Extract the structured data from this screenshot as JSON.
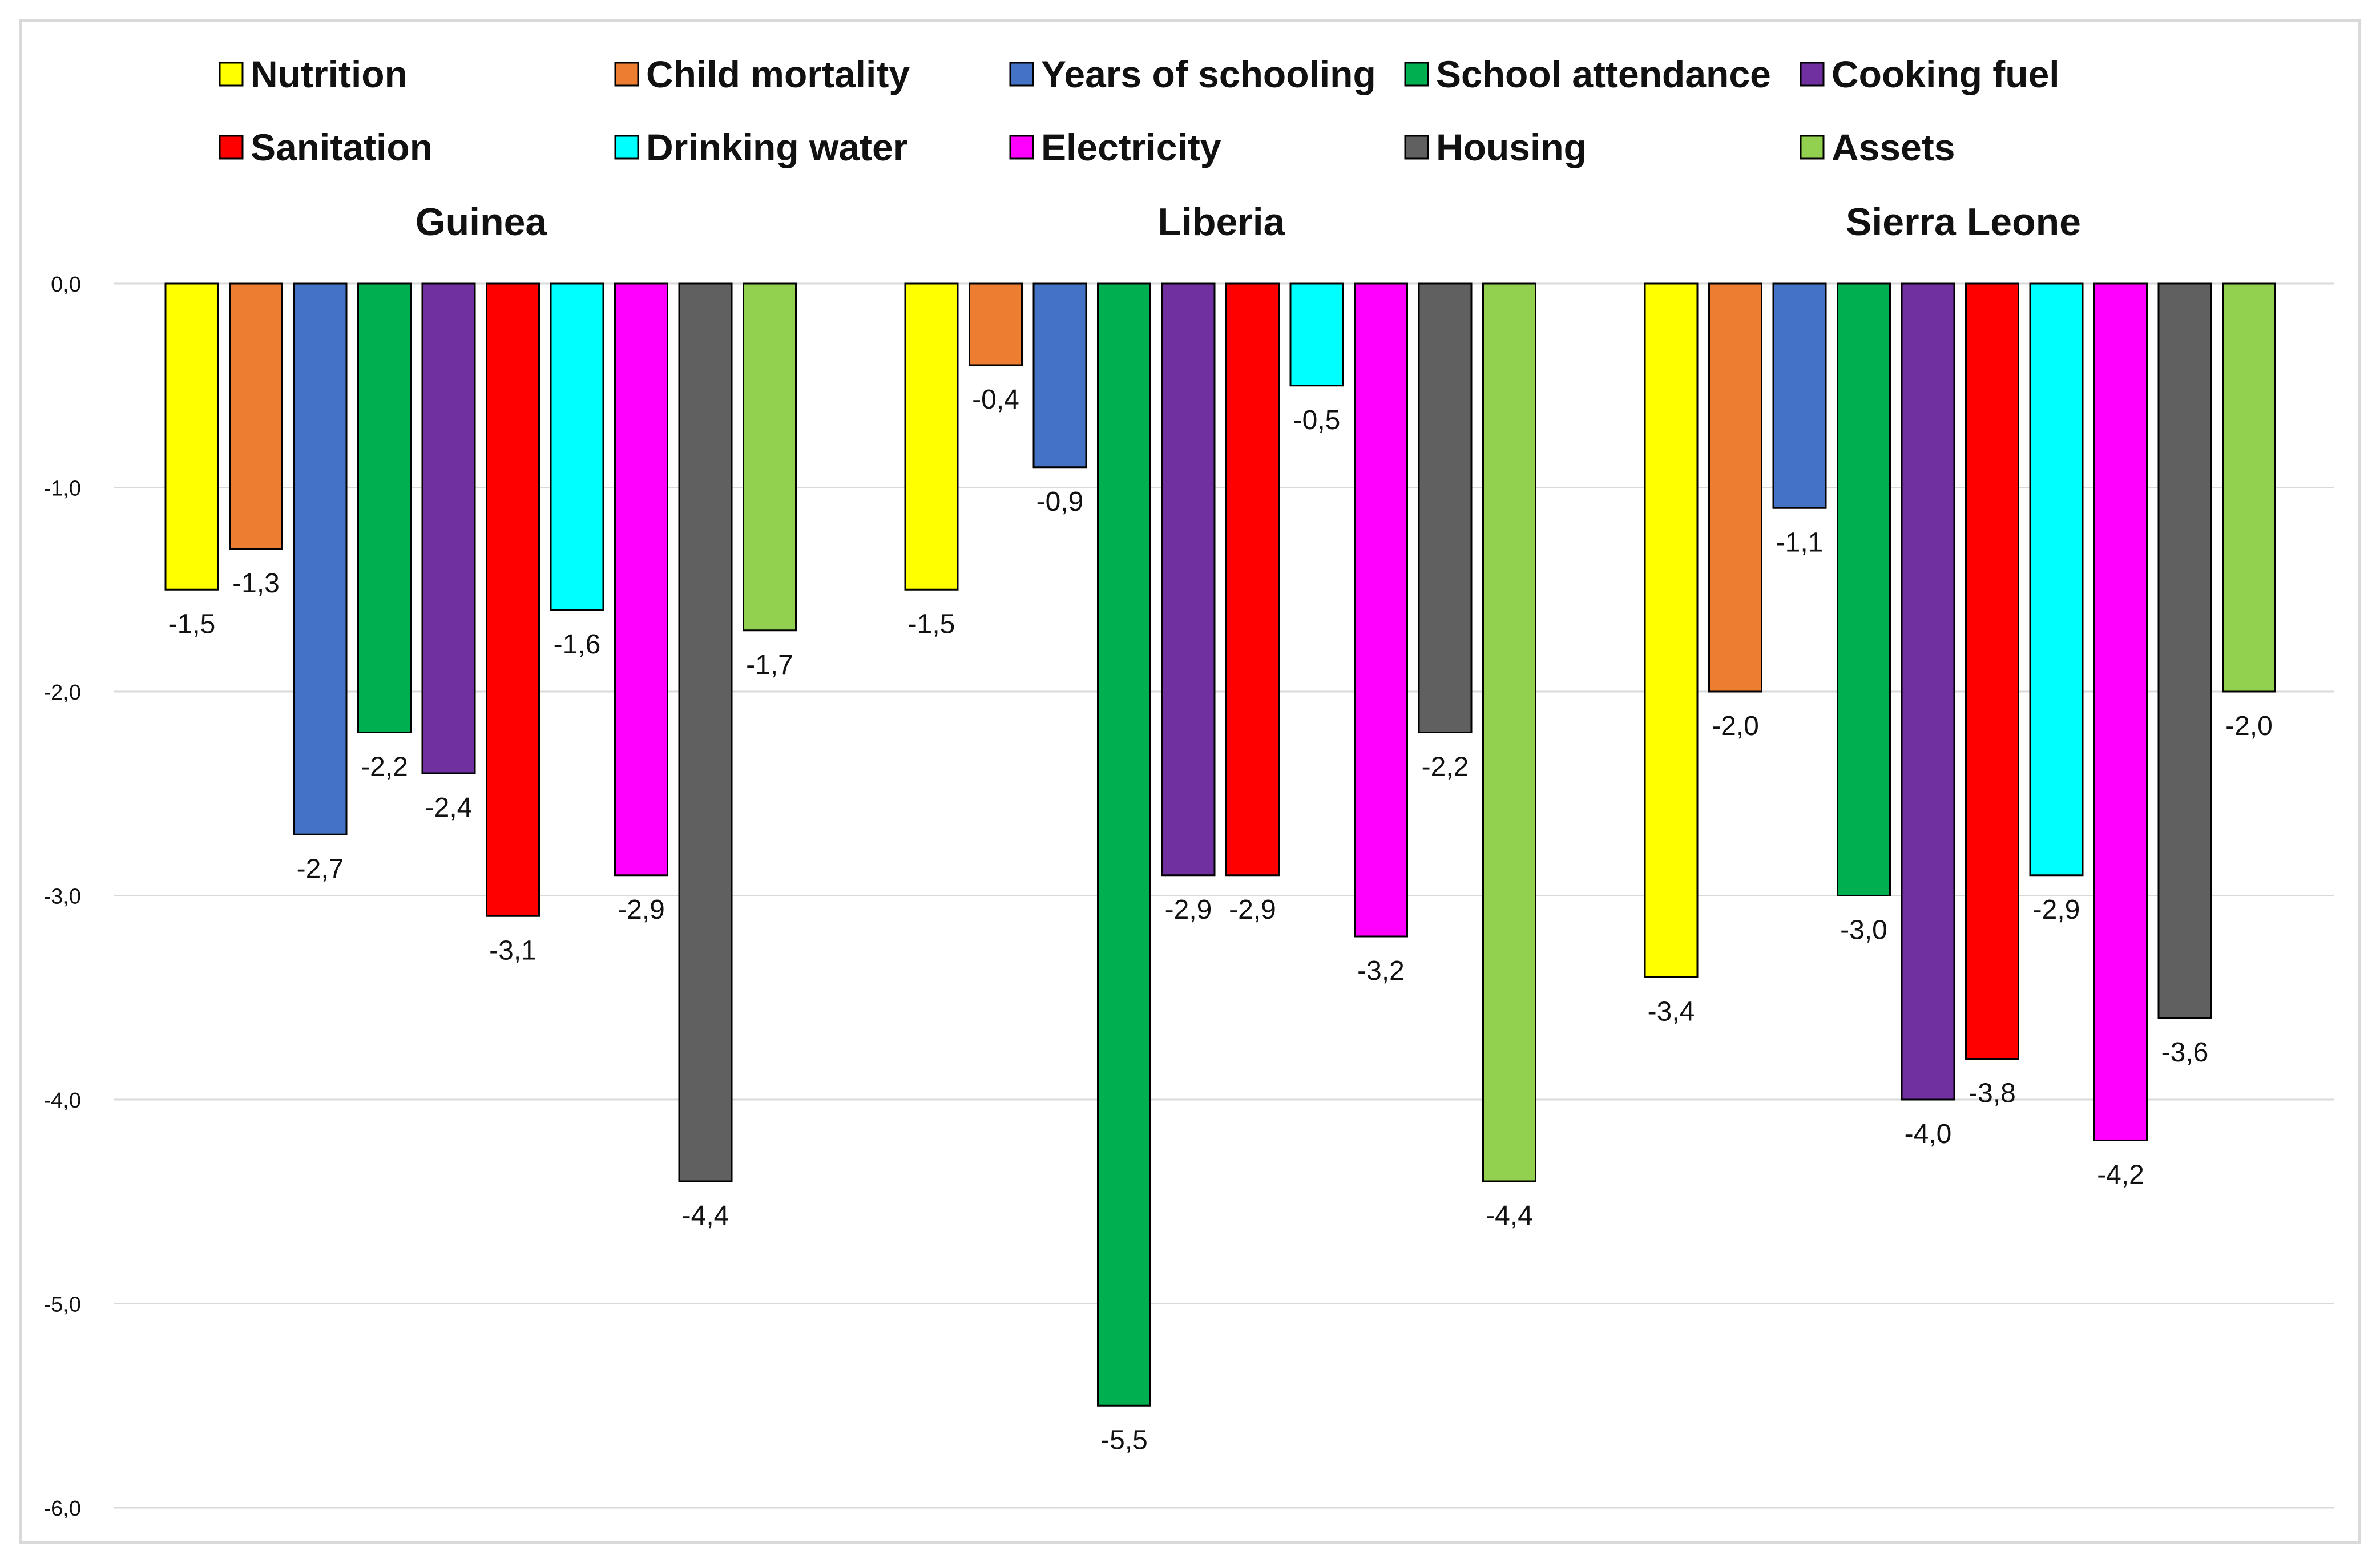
{
  "chart_data": {
    "type": "bar",
    "groups": [
      "Guinea",
      "Liberia",
      "Sierra Leone"
    ],
    "series": [
      {
        "name": "Nutrition",
        "color": "#ffff00",
        "values": [
          -1.5,
          -1.5,
          -3.4
        ],
        "labels": [
          "-1,5",
          "-1,5",
          "-3,4"
        ]
      },
      {
        "name": "Child mortality",
        "color": "#ed7d31",
        "values": [
          -1.3,
          -0.4,
          -2.0
        ],
        "labels": [
          "-1,3",
          "-0,4",
          "-2,0"
        ]
      },
      {
        "name": "Years of schooling",
        "color": "#4472c4",
        "values": [
          -2.7,
          -0.9,
          -1.1
        ],
        "labels": [
          "-2,7",
          "-0,9",
          "-1,1"
        ]
      },
      {
        "name": "School attendance",
        "color": "#00b050",
        "values": [
          -2.2,
          -5.5,
          -3.0
        ],
        "labels": [
          "-2,2",
          "-5,5",
          "-3,0"
        ]
      },
      {
        "name": "Cooking fuel",
        "color": "#7030a0",
        "values": [
          -2.4,
          -2.9,
          -4.0
        ],
        "labels": [
          "-2,4",
          "-2,9",
          "-4,0"
        ]
      },
      {
        "name": "Sanitation",
        "color": "#ff0000",
        "values": [
          -3.1,
          -2.9,
          -3.8
        ],
        "labels": [
          "-3,1",
          "-2,9",
          "-3,8"
        ]
      },
      {
        "name": "Drinking water",
        "color": "#00ffff",
        "values": [
          -1.6,
          -0.5,
          -2.9
        ],
        "labels": [
          "-1,6",
          "-0,5",
          "-2,9"
        ]
      },
      {
        "name": "Electricity",
        "color": "#ff00ff",
        "values": [
          -2.9,
          -3.2,
          -4.2
        ],
        "labels": [
          "-2,9",
          "-3,2",
          "-4,2"
        ]
      },
      {
        "name": "Housing",
        "color": "#606060",
        "values": [
          -4.4,
          -2.2,
          -3.6
        ],
        "labels": [
          "-4,4",
          "-2,2",
          "-3,6"
        ]
      },
      {
        "name": "Assets",
        "color": "#92d050",
        "values": [
          -1.7,
          -4.4,
          -2.0
        ],
        "labels": [
          "-1,7",
          "-4,4",
          "-2,0"
        ]
      }
    ],
    "yticks": [
      0,
      -1,
      -2,
      -3,
      -4,
      -5,
      -6
    ],
    "ytick_labels": [
      "0,0",
      "-1,0",
      "-2,0",
      "-3,0",
      "-4,0",
      "-5,0",
      "-6,0"
    ],
    "ylim": [
      -6,
      0
    ],
    "grid": true,
    "legend_position": "top",
    "xlabel": "",
    "ylabel": ""
  }
}
